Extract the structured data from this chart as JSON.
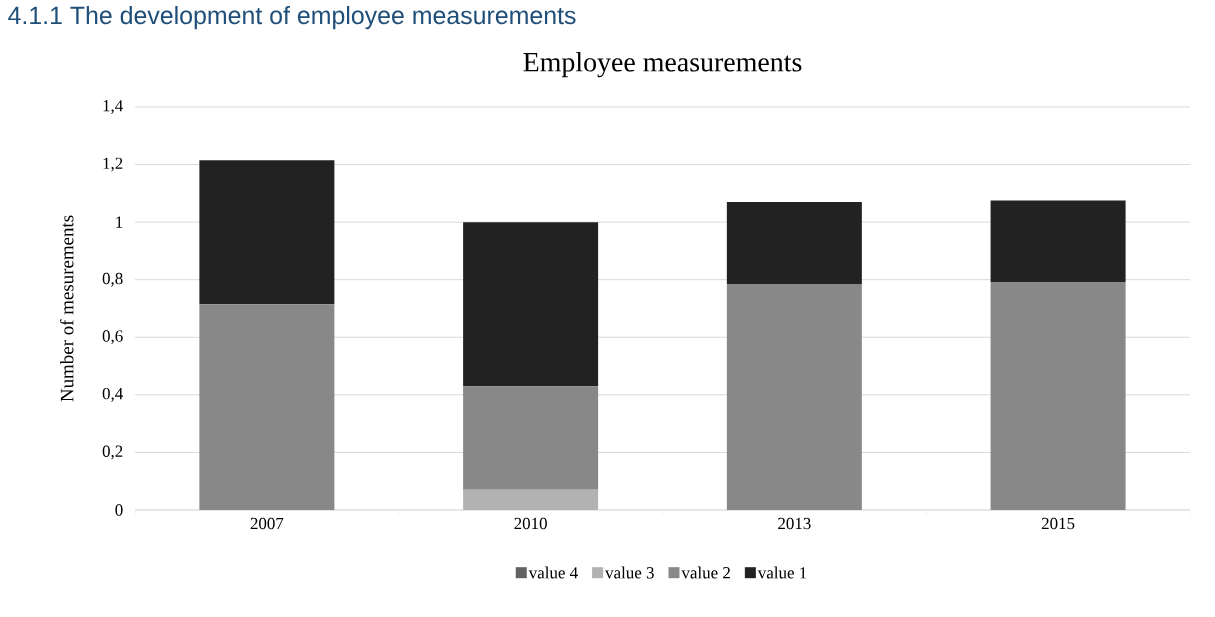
{
  "chart_data": {
    "type": "bar",
    "stacked": true,
    "title": "Employee measurements",
    "ylabel": "Number of mesurements",
    "annotations": [
      "4.1.1 The development of employee measurements"
    ],
    "categories": [
      "2007",
      "2010",
      "2013",
      "2015"
    ],
    "series": [
      {
        "name": "value 4",
        "color": "#636363",
        "values": [
          0,
          0,
          0,
          0
        ]
      },
      {
        "name": "value 3",
        "color": "#b2b2b2",
        "values": [
          0,
          0.07,
          0,
          0
        ]
      },
      {
        "name": "value 2",
        "color": "#888888",
        "values": [
          0.715,
          0.36,
          0.785,
          0.79
        ]
      },
      {
        "name": "value 1",
        "color": "#222222",
        "values": [
          0.5,
          0.57,
          0.285,
          0.285
        ]
      }
    ],
    "ylim": [
      0,
      1.4
    ],
    "yticks": [
      0,
      {
        "value": 0.2,
        "label": "0,2"
      },
      {
        "value": 0.4,
        "label": "0,4"
      },
      {
        "value": 0.6,
        "label": "0,6"
      },
      {
        "value": 0.8,
        "label": "0,8"
      },
      1,
      {
        "value": 1.2,
        "label": "1,2"
      },
      {
        "value": 1.4,
        "label": "1,4"
      }
    ],
    "grid": "y",
    "legend": "bottom"
  }
}
